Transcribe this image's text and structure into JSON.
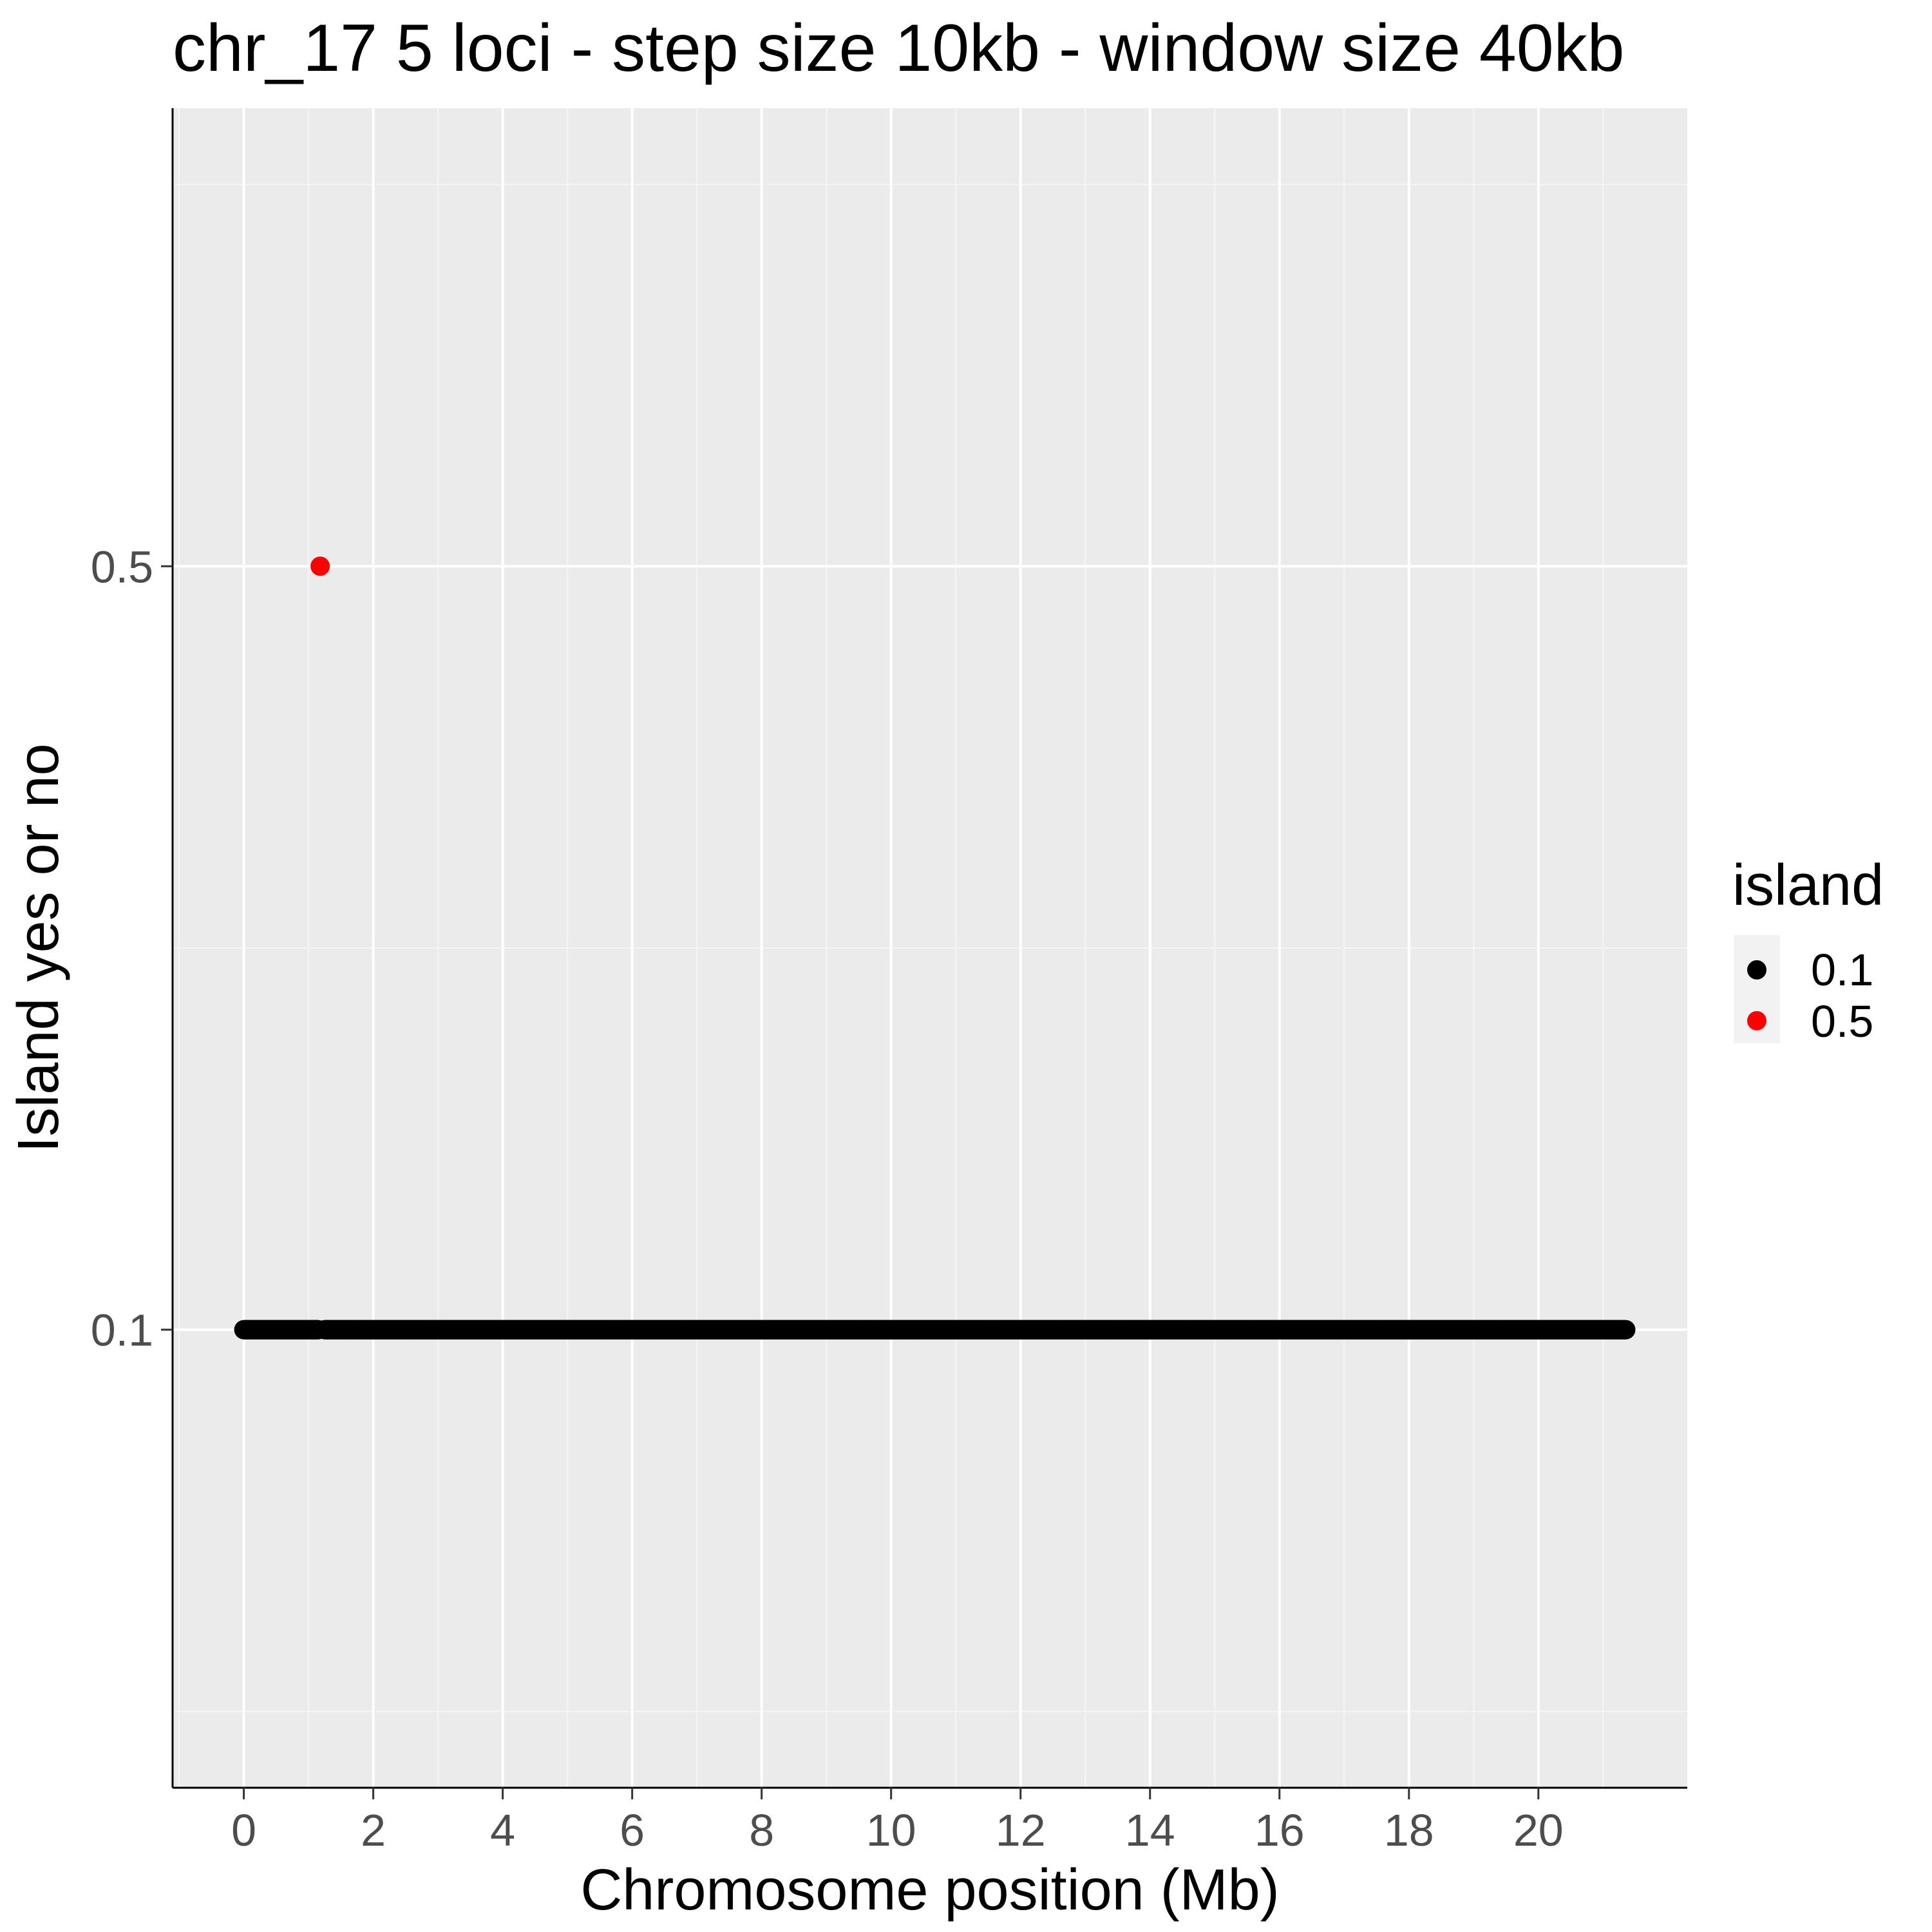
{
  "chart_data": {
    "type": "scatter",
    "title": "chr_17 5 loci - step size 10kb - window size 40kb",
    "xlabel": "Chromosome position (Mb)",
    "ylabel": "Island yes or no",
    "xlim": [
      -1.1,
      22.3
    ],
    "ylim": [
      -0.14,
      0.74
    ],
    "x_ticks": [
      0,
      2,
      4,
      6,
      8,
      10,
      12,
      14,
      16,
      18,
      20
    ],
    "x_tick_labels": [
      "0",
      "2",
      "4",
      "6",
      "8",
      "10",
      "12",
      "14",
      "16",
      "18",
      "20"
    ],
    "x_minor_ticks": [
      -1,
      1,
      3,
      5,
      7,
      9,
      11,
      13,
      15,
      17,
      19,
      21
    ],
    "y_ticks": [
      0.1,
      0.5
    ],
    "y_tick_labels": [
      "0.1",
      "0.5"
    ],
    "grid": true,
    "legend": {
      "title": "island",
      "position": "right",
      "entries": [
        {
          "label": "0.1",
          "color": "#000000"
        },
        {
          "label": "0.5",
          "color": "#ff0000"
        }
      ]
    },
    "series": [
      {
        "name": "0.1",
        "color": "#000000",
        "points": [
          {
            "x_start": 0.0,
            "x_end": 1.15,
            "y": 0.1,
            "step": 0.01
          },
          {
            "x_start": 1.25,
            "x_end": 21.35,
            "y": 0.1,
            "step": 0.01
          }
        ]
      },
      {
        "name": "0.5",
        "color": "#ff0000",
        "points": [
          {
            "x": 1.18,
            "y": 0.5
          }
        ]
      }
    ]
  },
  "colors": {
    "panel_background": "#ebebeb",
    "grid_major": "#ffffff",
    "grid_minor": "#f5f5f5",
    "axis_line": "#000000"
  }
}
